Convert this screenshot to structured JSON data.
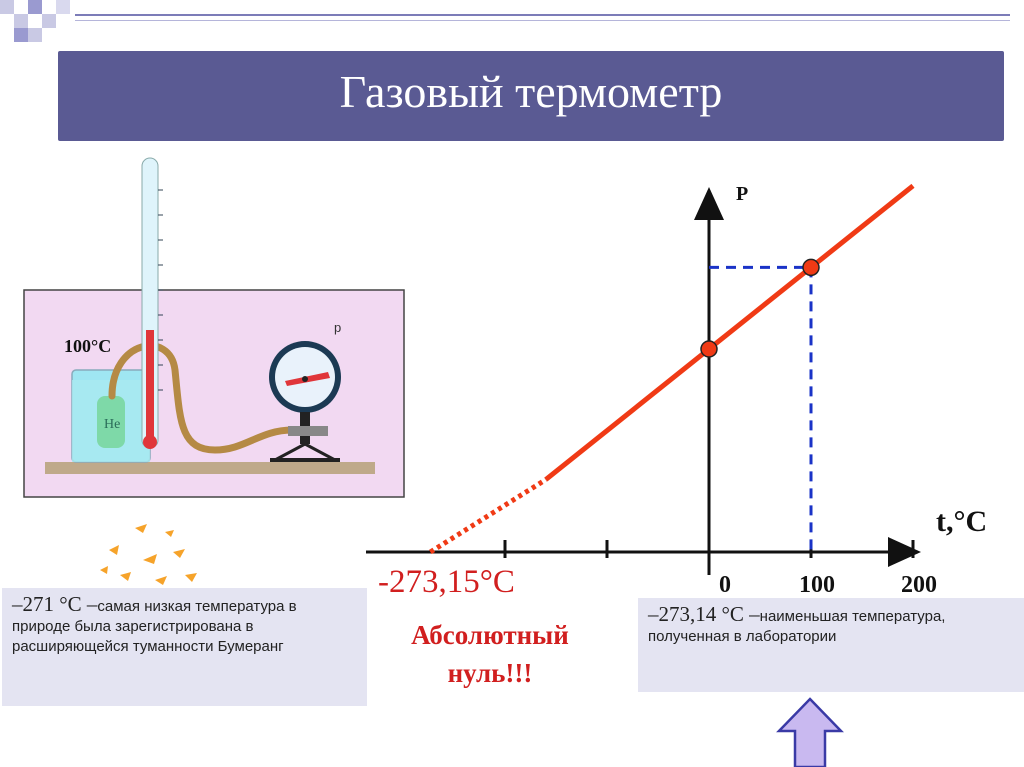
{
  "title": "Газовый термометр",
  "apparatus": {
    "thermo_label": "100°C",
    "gas_label": "He",
    "gauge_label": "p"
  },
  "chart_data": {
    "type": "line",
    "xlabel": "t,°C",
    "ylabel": "P",
    "x_ticks": [
      0,
      100,
      200
    ],
    "x_tick_labels": [
      "0",
      "100",
      "200"
    ],
    "xlim": [
      -310,
      210
    ],
    "points": [
      {
        "x": 0
      },
      {
        "x": 100
      }
    ],
    "extrapolation_to": -273.15,
    "colors": {
      "line": "#f03a15",
      "guides": "#1a33c7",
      "axes": "#111111"
    }
  },
  "absolute_zero": {
    "temperature": "-273,15°C",
    "label_line1": "Абсолютный",
    "label_line2": "нуль!!!"
  },
  "note_left": {
    "value": "–271 °С –",
    "text": "самая низкая температура в природе была зарегистрирована в расширяющейся туманности Бумеранг"
  },
  "note_right": {
    "value": "–273,14 °С –",
    "text": "наименьшая температура, полученная в лаборатории"
  }
}
